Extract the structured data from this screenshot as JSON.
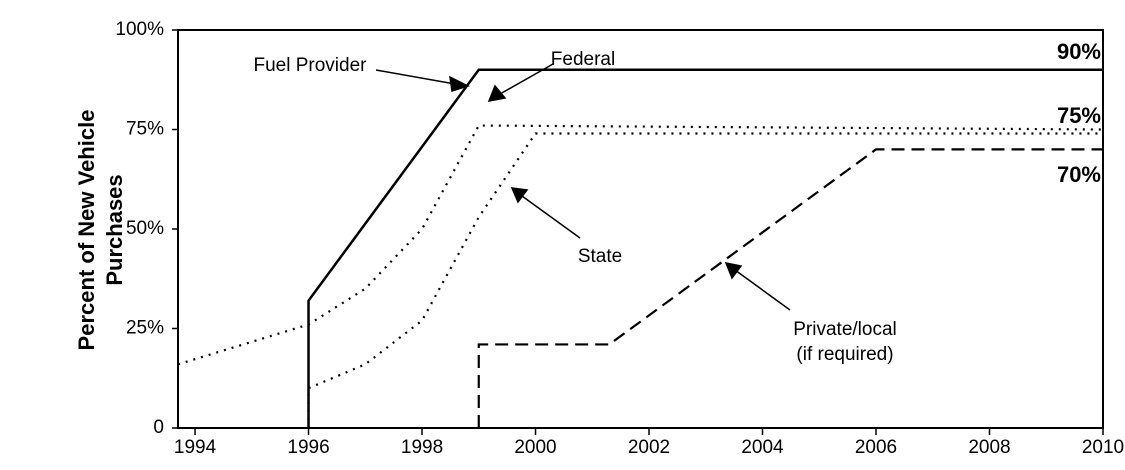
{
  "chart_data": {
    "type": "line",
    "ylabel": [
      "Percent of New Vehicle",
      "Purchases"
    ],
    "xlim": [
      1993.7,
      2010
    ],
    "ylim": [
      0,
      100
    ],
    "xticks": [
      1994,
      1996,
      1998,
      2000,
      2002,
      2004,
      2006,
      2008,
      2010
    ],
    "yticks": [
      0,
      {
        "value": 25,
        "label": "25%"
      },
      {
        "value": 50,
        "label": "50%"
      },
      {
        "value": 75,
        "label": "75%"
      },
      {
        "value": 100,
        "label": "100%"
      }
    ],
    "series": [
      {
        "name": "Fuel Provider",
        "color": "#000000",
        "style": "solid",
        "x": [
          1996,
          1996,
          1999,
          2010
        ],
        "values": [
          0,
          32,
          90,
          90
        ]
      },
      {
        "name": "Federal",
        "color": "#000000",
        "style": "dotted",
        "x": [
          1993.7,
          1996,
          1997,
          1998,
          1999,
          2010
        ],
        "values": [
          16,
          26,
          35,
          50,
          76,
          75
        ]
      },
      {
        "name": "State",
        "color": "#000000",
        "style": "dotted",
        "x": [
          1996,
          1996,
          1997,
          1998,
          1999,
          2000,
          2010
        ],
        "values": [
          0,
          10,
          16,
          27,
          53,
          74,
          74
        ]
      },
      {
        "name": "Private/local",
        "note": "(if required)",
        "color": "#000000",
        "style": "dashed",
        "x": [
          1999,
          1999,
          2001.3,
          2006,
          2010
        ],
        "values": [
          0,
          21,
          21,
          70,
          70
        ]
      }
    ],
    "annotations": [
      "90%",
      "75%",
      "70%"
    ]
  }
}
